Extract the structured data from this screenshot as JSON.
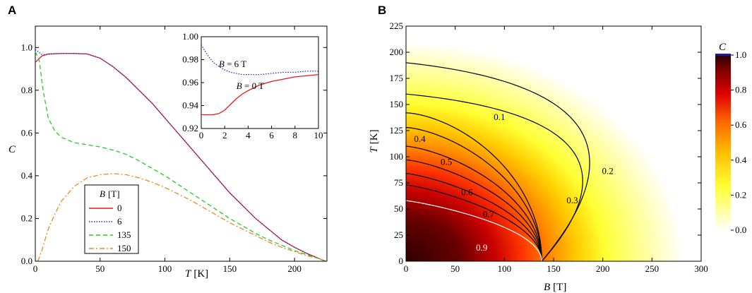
{
  "panels": {
    "a_letter": "A",
    "b_letter": "B"
  },
  "chart_data": [
    {
      "id": "A",
      "type": "line",
      "xlabel_var": "T",
      "xlabel_unit": "[K]",
      "ylabel": "C",
      "xlim": [
        0,
        225
      ],
      "ylim": [
        0,
        1.1
      ],
      "xticks": [
        0,
        50,
        100,
        150,
        200
      ],
      "yticks": [
        0.0,
        0.2,
        0.4,
        0.6,
        0.8,
        1.0
      ],
      "legend": {
        "title_var": "B",
        "title_unit": "[T]",
        "placement": "lower-left"
      },
      "series": [
        {
          "name": "0",
          "color": "#e41a1c",
          "style": "solid",
          "x": [
            0,
            5,
            10,
            20,
            30,
            40,
            50,
            60,
            70,
            80,
            90,
            100,
            110,
            120,
            130,
            140,
            150,
            160,
            170,
            180,
            190,
            200,
            210,
            220,
            224
          ],
          "y": [
            0.93,
            0.96,
            0.97,
            0.972,
            0.972,
            0.97,
            0.95,
            0.91,
            0.86,
            0.8,
            0.74,
            0.67,
            0.6,
            0.53,
            0.46,
            0.39,
            0.32,
            0.26,
            0.2,
            0.15,
            0.1,
            0.065,
            0.035,
            0.01,
            0.0
          ]
        },
        {
          "name": "6",
          "color": "#2b2bd6",
          "style": "dotted",
          "x": [
            0,
            5,
            10,
            20,
            30,
            40,
            50,
            60,
            70,
            80,
            90,
            100,
            110,
            120,
            130,
            140,
            150,
            160,
            170,
            180,
            190,
            200,
            210,
            220,
            224
          ],
          "y": [
            0.99,
            0.967,
            0.968,
            0.972,
            0.972,
            0.97,
            0.95,
            0.91,
            0.86,
            0.8,
            0.74,
            0.67,
            0.6,
            0.53,
            0.46,
            0.39,
            0.32,
            0.26,
            0.2,
            0.15,
            0.1,
            0.065,
            0.035,
            0.01,
            0.0
          ]
        },
        {
          "name": "135",
          "color": "#22cc22",
          "style": "dashed",
          "x": [
            0,
            3,
            6,
            10,
            15,
            20,
            30,
            40,
            50,
            60,
            70,
            80,
            90,
            100,
            110,
            120,
            130,
            140,
            150,
            160,
            170,
            180,
            190,
            200,
            210,
            220,
            224
          ],
          "y": [
            0.98,
            0.94,
            0.8,
            0.67,
            0.61,
            0.58,
            0.555,
            0.545,
            0.535,
            0.52,
            0.5,
            0.47,
            0.435,
            0.4,
            0.36,
            0.32,
            0.28,
            0.24,
            0.2,
            0.165,
            0.13,
            0.1,
            0.075,
            0.05,
            0.03,
            0.01,
            0.0
          ]
        },
        {
          "name": "150",
          "color": "#ee8822",
          "style": "dashdot",
          "x": [
            2,
            5,
            10,
            15,
            20,
            30,
            40,
            50,
            60,
            70,
            80,
            90,
            100,
            110,
            120,
            130,
            140,
            150,
            160,
            170,
            180,
            190,
            200,
            210,
            220,
            224
          ],
          "y": [
            0.0,
            0.05,
            0.15,
            0.22,
            0.28,
            0.35,
            0.39,
            0.405,
            0.41,
            0.405,
            0.39,
            0.37,
            0.345,
            0.315,
            0.285,
            0.25,
            0.215,
            0.18,
            0.15,
            0.12,
            0.09,
            0.065,
            0.045,
            0.025,
            0.01,
            0.0
          ]
        }
      ],
      "inset": {
        "xlim": [
          0,
          10
        ],
        "ylim": [
          0.92,
          1.0
        ],
        "xticks": [
          0,
          2,
          4,
          6,
          8,
          10
        ],
        "yticks": [
          0.92,
          0.94,
          0.96,
          0.98,
          1.0
        ],
        "annotations": [
          {
            "var": "B",
            "text": " = 6 T",
            "x": 1.5,
            "y": 0.9735
          },
          {
            "var": "B",
            "text": " = 0 T",
            "x": 3.0,
            "y": 0.9545
          }
        ],
        "series": [
          {
            "name": "0",
            "color": "#e41a1c",
            "style": "solid",
            "x": [
              0,
              0.5,
              1,
              1.5,
              2,
              2.5,
              3,
              3.5,
              4,
              5,
              6,
              7,
              8,
              9,
              10
            ],
            "y": [
              0.932,
              0.932,
              0.932,
              0.933,
              0.936,
              0.941,
              0.946,
              0.95,
              0.953,
              0.958,
              0.961,
              0.963,
              0.965,
              0.966,
              0.967
            ]
          },
          {
            "name": "6",
            "color": "#2b2bd6",
            "style": "dotted",
            "x": [
              0,
              0.3,
              0.6,
              1,
              1.5,
              2,
              2.5,
              3,
              3.5,
              4,
              5,
              6,
              7,
              8,
              9,
              10
            ],
            "y": [
              0.993,
              0.988,
              0.983,
              0.978,
              0.974,
              0.971,
              0.969,
              0.968,
              0.967,
              0.967,
              0.967,
              0.968,
              0.969,
              0.969,
              0.97,
              0.97
            ]
          }
        ]
      }
    },
    {
      "id": "B",
      "type": "heatmap",
      "xlabel_var": "B",
      "xlabel_unit": "[T]",
      "ylabel_var": "T",
      "ylabel_unit": "[K]",
      "xlim": [
        0,
        300
      ],
      "ylim": [
        0,
        225
      ],
      "xticks": [
        0,
        50,
        100,
        150,
        200,
        250,
        300
      ],
      "yticks": [
        0,
        25,
        50,
        75,
        100,
        125,
        150,
        175,
        200,
        225
      ],
      "colorbar": {
        "label": "C",
        "range": [
          0.0,
          1.0
        ],
        "ticks": [
          0.0,
          0.2,
          0.4,
          0.6,
          0.8,
          1.0
        ],
        "stops": [
          "#ffffff",
          "#ffff66",
          "#ffcc00",
          "#ff8800",
          "#ee1111",
          "#a00000",
          "#300000"
        ]
      },
      "contours": [
        {
          "level": "0.1",
          "t0": 190,
          "label_at": [
            95,
            138
          ]
        },
        {
          "level": "0.2",
          "t0": 160,
          "label_at": [
            205,
            86
          ]
        },
        {
          "level": "0.3",
          "t0": 142,
          "label_at": [
            169,
            58
          ]
        },
        {
          "level": "0.4",
          "t0": 128,
          "label_at": [
            14,
            117
          ]
        },
        {
          "level": "0.5",
          "t0": 110,
          "label_at": [
            41,
            95
          ]
        },
        {
          "level": "0.6",
          "t0": 97,
          "label_at": [
            62,
            66
          ]
        },
        {
          "level": "0.7",
          "t0": 84,
          "label_at": [
            84,
            45
          ]
        },
        {
          "level": "0.8",
          "t0": 73,
          "label_at": null
        },
        {
          "level": "0.9",
          "t0": 58,
          "label_at": [
            77,
            13
          ]
        }
      ],
      "convergence_point": [
        138,
        0
      ]
    }
  ]
}
